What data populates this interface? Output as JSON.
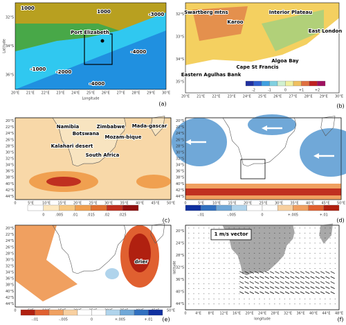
{
  "panels": [
    {
      "label": "(a)",
      "y_axis_label": "Latitude",
      "x_axis_label": "Longitude",
      "lat_ticks": [
        "32°S",
        "34°S",
        "36°S"
      ],
      "lon_ticks": [
        "20°E",
        "21°E",
        "22°E",
        "23°E",
        "24°E",
        "25°E",
        "26°E",
        "27°E",
        "28°E",
        "29°E",
        "30°E"
      ],
      "annotations": [
        "1000",
        "1000",
        "-3000",
        "Port Elizabeth",
        "-4000",
        "-1000",
        "-2000",
        "-4000"
      ]
    },
    {
      "label": "(b)",
      "lat_ticks": [
        "32°S",
        "33°S",
        "34°S",
        "35°S"
      ],
      "lon_ticks": [
        "20°E",
        "21°E",
        "22°E",
        "23°E",
        "24°E",
        "25°E",
        "26°E",
        "27°E",
        "28°E",
        "29°E",
        "30°E"
      ],
      "annotations": [
        "Swartberg mtns",
        "Karoo",
        "Interior Plateau",
        "East London",
        "Algoa Bay",
        "Cape St Francis",
        "Eastern Agulhas Bank"
      ],
      "colorbar": {
        "labels": [
          "-2",
          "-1",
          "0",
          "+1",
          "+2"
        ],
        "colors": [
          "#2030a0",
          "#3060d0",
          "#40a0e0",
          "#80d0e0",
          "#d0f0d0",
          "#f0f0a0",
          "#f0c060",
          "#e07040",
          "#c02020",
          "#a01060"
        ]
      }
    },
    {
      "label": "(c)",
      "lat_ticks": [
        "20°S",
        "22°S",
        "24°S",
        "26°S",
        "28°S",
        "30°S",
        "32°S",
        "34°S",
        "36°S",
        "38°S",
        "40°S",
        "42°S",
        "44°S"
      ],
      "lon_ticks": [
        "0",
        "5°E",
        "10°E",
        "15°E",
        "20°E",
        "25°E",
        "30°E",
        "35°E",
        "40°E",
        "45°E",
        "50°E"
      ],
      "annotations": [
        "Namibia",
        "Botswana",
        "Zimbabwe",
        "Mozam-bique",
        "Mada-gascar",
        "Kalahari desert",
        "South Africa"
      ],
      "colorbar": {
        "labels": [
          "0",
          ".005",
          ".01",
          ".015",
          ".02",
          ".025"
        ],
        "colors": [
          "#ffffff",
          "#fde8c0",
          "#f8c880",
          "#f0a050",
          "#e07030",
          "#c03020",
          "#901010"
        ]
      }
    },
    {
      "label": "(d)",
      "lat_ticks": [
        "20°S",
        "22°S",
        "24°S",
        "26°S",
        "28°S",
        "30°S",
        "32°S",
        "34°S",
        "36°S",
        "38°S",
        "40°S",
        "42°S",
        "44°S"
      ],
      "lon_ticks": [
        "0",
        "5°E",
        "10°E",
        "15°E",
        "20°E",
        "25°E",
        "30°E",
        "35°E",
        "40°E",
        "45°E",
        "50°E"
      ],
      "annotations": [],
      "colorbar": {
        "labels": [
          "-.01",
          "-.005",
          "0",
          "+.005",
          "+.01"
        ],
        "colors": [
          "#1030a0",
          "#3070c0",
          "#70a8d8",
          "#b0d4ec",
          "#ffffff",
          "#ffffff",
          "#f8d0a0",
          "#f0a060",
          "#e06030",
          "#b02010"
        ]
      }
    },
    {
      "label": "(e)",
      "lat_ticks": [
        "20°S",
        "22°S",
        "24°S",
        "26°S",
        "28°S",
        "30°S",
        "32°S",
        "34°S",
        "36°S",
        "38°S",
        "40°S",
        "42°S",
        "44°S"
      ],
      "lon_ticks": [
        "0",
        "5°E",
        "10°E",
        "15°E",
        "20°E",
        "25°E",
        "30°E",
        "35°E",
        "40°E",
        "45°E",
        "50°E"
      ],
      "annotations": [
        "drier"
      ],
      "colorbar": {
        "labels": [
          "-.01",
          "-.005",
          "0",
          "+.005",
          "+.01"
        ],
        "colors": [
          "#b02010",
          "#e06030",
          "#f0a060",
          "#f8d0a0",
          "#ffffff",
          "#ffffff",
          "#b0d4ec",
          "#70a8d8",
          "#3070c0",
          "#1030a0"
        ]
      }
    },
    {
      "label": "(f)",
      "y_axis_label": "latitude",
      "x_axis_label": "longitude",
      "lat_ticks": [
        "20°S",
        "24°S",
        "28°S",
        "32°S",
        "36°S",
        "40°S",
        "44°S"
      ],
      "lon_ticks": [
        "0",
        "4°E",
        "8°E",
        "12°E",
        "16°E",
        "20°E",
        "24°E",
        "28°E",
        "32°E",
        "36°E",
        "40°E",
        "44°E",
        "48°E"
      ],
      "annotations": [
        "1 m/s vector"
      ]
    }
  ]
}
